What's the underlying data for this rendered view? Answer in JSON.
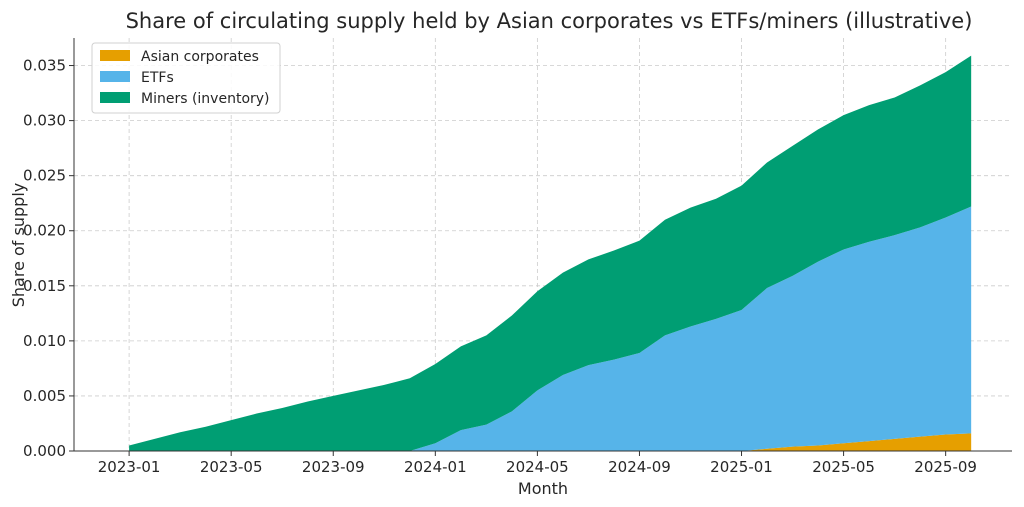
{
  "chart_data": {
    "type": "area",
    "stacked": true,
    "title": "Share of circulating supply held by Asian corporates vs ETFs/miners (illustrative)",
    "xlabel": "Month",
    "ylabel": "Share of supply",
    "ylim": [
      0,
      0.0375
    ],
    "grid": true,
    "legend_placement": "top-left",
    "x": [
      "2023-01",
      "2023-02",
      "2023-03",
      "2023-04",
      "2023-05",
      "2023-06",
      "2023-07",
      "2023-08",
      "2023-09",
      "2023-10",
      "2023-11",
      "2023-12",
      "2024-01",
      "2024-02",
      "2024-03",
      "2024-04",
      "2024-05",
      "2024-06",
      "2024-07",
      "2024-08",
      "2024-09",
      "2024-10",
      "2024-11",
      "2024-12",
      "2025-01",
      "2025-02",
      "2025-03",
      "2025-04",
      "2025-05",
      "2025-06",
      "2025-07",
      "2025-08",
      "2025-09",
      "2025-10"
    ],
    "x_ticks": [
      "2023-01",
      "2023-05",
      "2023-09",
      "2024-01",
      "2024-05",
      "2024-09",
      "2025-01",
      "2025-05",
      "2025-09"
    ],
    "y_ticks": [
      "0.000",
      "0.005",
      "0.010",
      "0.015",
      "0.020",
      "0.025",
      "0.030",
      "0.035"
    ],
    "series": [
      {
        "name": "Asian corporates",
        "color": "#E69F00",
        "values": [
          0,
          0,
          0,
          0,
          0,
          0,
          0,
          0,
          0,
          0,
          0,
          0,
          0,
          0,
          0,
          0,
          0,
          0,
          0,
          0,
          0,
          0,
          0,
          0,
          0,
          0.0002,
          0.0004,
          0.0005,
          0.0007,
          0.0009,
          0.0011,
          0.0013,
          0.0015,
          0.0016
        ]
      },
      {
        "name": "ETFs",
        "color": "#56B4E9",
        "values": [
          0,
          0,
          0,
          0,
          0,
          0,
          0,
          0,
          0,
          0,
          0,
          0,
          0.0007,
          0.0019,
          0.0024,
          0.0036,
          0.0055,
          0.0069,
          0.0078,
          0.0083,
          0.0089,
          0.0105,
          0.0113,
          0.012,
          0.0128,
          0.0146,
          0.0155,
          0.0167,
          0.0176,
          0.0181,
          0.0185,
          0.019,
          0.0197,
          0.0206
        ]
      },
      {
        "name": "Miners (inventory)",
        "color": "#009E73",
        "values": [
          0.0005,
          0.0011,
          0.0017,
          0.0022,
          0.0028,
          0.0034,
          0.0039,
          0.0045,
          0.005,
          0.0055,
          0.006,
          0.0066,
          0.0072,
          0.0076,
          0.0081,
          0.0087,
          0.009,
          0.0093,
          0.0096,
          0.0099,
          0.0102,
          0.0105,
          0.0108,
          0.0109,
          0.0113,
          0.0114,
          0.0118,
          0.012,
          0.0122,
          0.0124,
          0.0125,
          0.0129,
          0.0132,
          0.0137
        ]
      }
    ]
  }
}
